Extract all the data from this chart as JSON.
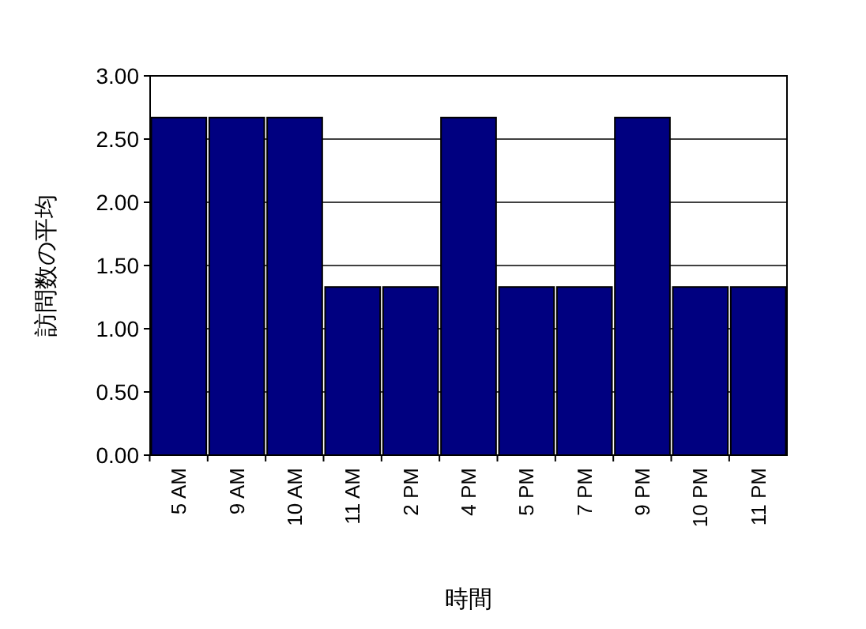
{
  "chart_data": {
    "type": "bar",
    "xlabel": "時間",
    "ylabel": "訪問数の平均",
    "categories": [
      "5 AM",
      "9 AM",
      "10 AM",
      "11 AM",
      "2 PM",
      "4 PM",
      "5 PM",
      "7 PM",
      "9 PM",
      "10 PM",
      "11 PM"
    ],
    "values": [
      2.67,
      2.67,
      2.67,
      1.33,
      1.33,
      2.67,
      1.33,
      1.33,
      2.67,
      1.33,
      1.33
    ],
    "color": "#000080",
    "ylim": [
      0,
      3
    ],
    "yticks": [
      {
        "value": 0,
        "label": "0.00"
      },
      {
        "value": 0.5,
        "label": "0.50"
      },
      {
        "value": 1,
        "label": "1.00"
      },
      {
        "value": 1.5,
        "label": "1.50"
      },
      {
        "value": 2,
        "label": "2.00"
      },
      {
        "value": 2.5,
        "label": "2.50"
      },
      {
        "value": 3,
        "label": "3.00"
      }
    ],
    "grid": "y"
  }
}
